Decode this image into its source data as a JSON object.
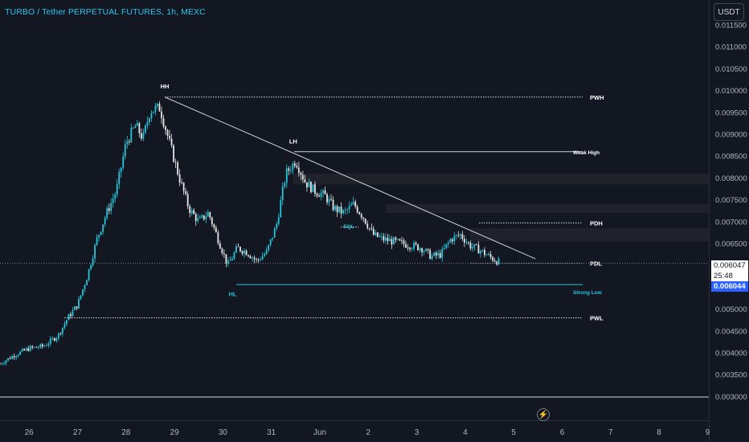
{
  "header": {
    "title": "TURBO / Tether PERPETUAL FUTURES, 1h, MEXC",
    "currency": "USDT"
  },
  "colors": {
    "background": "#131722",
    "up": "#26c6da",
    "down": "#e6e6e6",
    "axis_text": "#b2b5be",
    "title": "#2ec4ee",
    "zone": "#1f222b",
    "strong_low": "#26c6da"
  },
  "price_labels": {
    "last": "0.006047",
    "countdown": "25:48",
    "bid": "0.006044"
  },
  "chart_data": {
    "type": "candlestick",
    "y_axis": {
      "ticks": [
        "0.011500",
        "0.011000",
        "0.010500",
        "0.010000",
        "0.009500",
        "0.009000",
        "0.008500",
        "0.008000",
        "0.007500",
        "0.007000",
        "0.006500",
        "0.006000",
        "0.005500",
        "0.005000",
        "0.004500",
        "0.004000",
        "0.003500",
        "0.003000"
      ],
      "range": [
        0.0029,
        0.0118
      ]
    },
    "x_axis": {
      "ticks": [
        "26",
        "27",
        "28",
        "29",
        "30",
        "31",
        "Jun",
        "2",
        "3",
        "4",
        "5",
        "6",
        "7",
        "8",
        "9"
      ],
      "range": [
        25.4,
        9.1
      ]
    },
    "price_path": [
      [
        25.4,
        0.00375
      ],
      [
        25.7,
        0.00395
      ],
      [
        26.0,
        0.0041
      ],
      [
        26.3,
        0.00415
      ],
      [
        26.6,
        0.0044
      ],
      [
        26.8,
        0.0048
      ],
      [
        27.0,
        0.0051
      ],
      [
        27.2,
        0.00575
      ],
      [
        27.4,
        0.0066
      ],
      [
        27.6,
        0.0072
      ],
      [
        27.8,
        0.0077
      ],
      [
        28.0,
        0.0088
      ],
      [
        28.2,
        0.0092
      ],
      [
        28.35,
        0.0089
      ],
      [
        28.5,
        0.00955
      ],
      [
        28.7,
        0.0096
      ],
      [
        28.9,
        0.0088
      ],
      [
        29.1,
        0.008
      ],
      [
        29.3,
        0.0073
      ],
      [
        29.5,
        0.007
      ],
      [
        29.7,
        0.0072
      ],
      [
        29.9,
        0.0066
      ],
      [
        30.1,
        0.006
      ],
      [
        30.3,
        0.0064
      ],
      [
        30.5,
        0.0063
      ],
      [
        30.7,
        0.0061
      ],
      [
        30.9,
        0.0063
      ],
      [
        31.1,
        0.0069
      ],
      [
        31.3,
        0.0081
      ],
      [
        31.5,
        0.0084
      ],
      [
        31.7,
        0.0079
      ],
      [
        31.9,
        0.0077
      ],
      [
        32.1,
        0.0076
      ],
      [
        32.3,
        0.0073
      ],
      [
        32.5,
        0.0072
      ],
      [
        32.7,
        0.0074
      ],
      [
        32.9,
        0.0071
      ],
      [
        33.1,
        0.0067
      ],
      [
        33.3,
        0.0066
      ],
      [
        33.5,
        0.00655
      ],
      [
        33.7,
        0.0065
      ],
      [
        33.9,
        0.00645
      ],
      [
        34.1,
        0.0064
      ],
      [
        34.3,
        0.0062
      ],
      [
        34.5,
        0.00625
      ],
      [
        34.7,
        0.0066
      ],
      [
        34.9,
        0.0067
      ],
      [
        35.1,
        0.00645
      ],
      [
        35.3,
        0.00635
      ],
      [
        35.5,
        0.0062
      ],
      [
        35.7,
        0.00607
      ]
    ],
    "levels": [
      {
        "label": "PWH",
        "price": 0.00985
      },
      {
        "label": "Weak High",
        "price": 0.0086
      },
      {
        "label": "PDH",
        "price": 0.00697
      },
      {
        "label": "PDL",
        "price": 0.00605
      },
      {
        "label": "Strong Low",
        "price": 0.00556
      },
      {
        "label": "PWL",
        "price": 0.0048
      }
    ],
    "annotations": [
      {
        "label": "HH",
        "x": 28.8,
        "price": 0.01005
      },
      {
        "label": "LH",
        "x": 31.45,
        "price": 0.00879
      },
      {
        "label": "EQL",
        "x": 32.6,
        "price": 0.00685
      },
      {
        "label": "HL",
        "x": 30.2,
        "price": 0.0053
      }
    ],
    "trendline": [
      [
        28.8,
        0.00985
      ],
      [
        36.45,
        0.00615
      ]
    ],
    "grid": false,
    "legend": "none"
  }
}
